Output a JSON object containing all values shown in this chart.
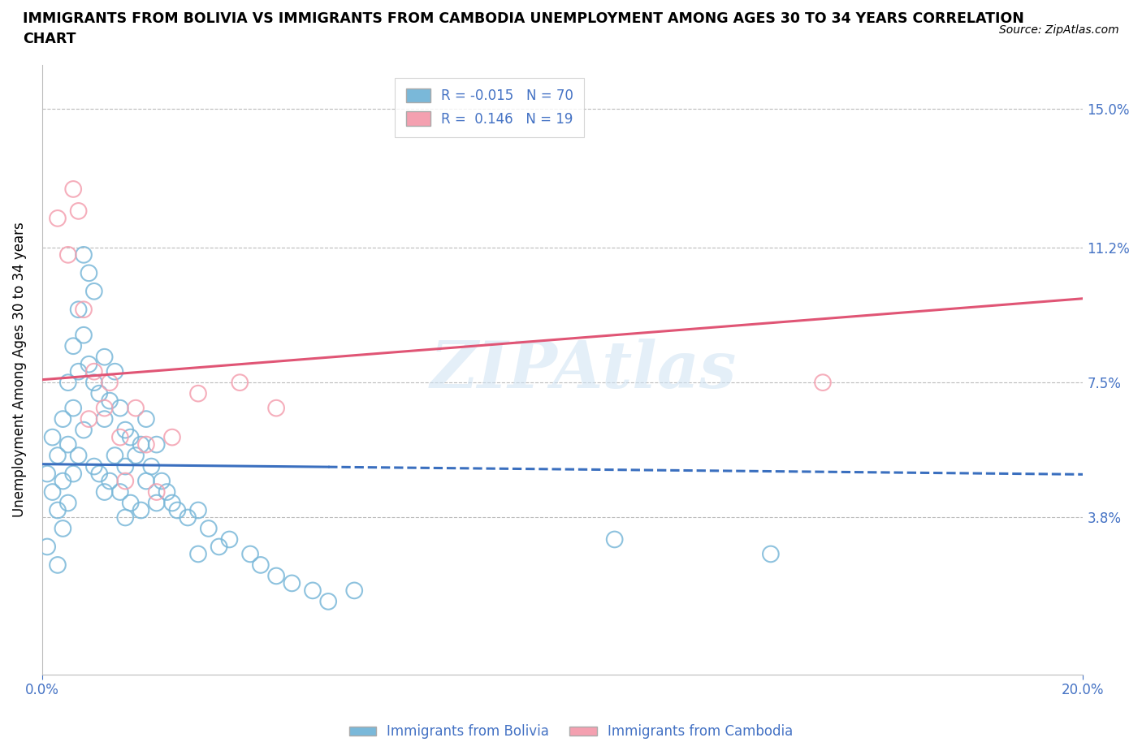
{
  "title_line1": "IMMIGRANTS FROM BOLIVIA VS IMMIGRANTS FROM CAMBODIA UNEMPLOYMENT AMONG AGES 30 TO 34 YEARS CORRELATION",
  "title_line2": "CHART",
  "source": "Source: ZipAtlas.com",
  "ylabel": "Unemployment Among Ages 30 to 34 years",
  "xlim": [
    0.0,
    0.2
  ],
  "ylim": [
    -0.005,
    0.162
  ],
  "ytick_values": [
    0.038,
    0.075,
    0.112,
    0.15
  ],
  "ytick_labels": [
    "3.8%",
    "7.5%",
    "11.2%",
    "15.0%"
  ],
  "bolivia_color": "#7ab8d9",
  "cambodia_color": "#f4a0b0",
  "bolivia_trend_color": "#3a6fbf",
  "cambodia_trend_color": "#e05575",
  "axis_color": "#4472c4",
  "legend_label_bolivia": "Immigrants from Bolivia",
  "legend_label_cambodia": "Immigrants from Cambodia",
  "watermark": "ZIPAtlas",
  "bolivia_R": -0.015,
  "bolivia_N": 70,
  "cambodia_R": 0.146,
  "cambodia_N": 19,
  "bolivia_scatter_x": [
    0.001,
    0.001,
    0.002,
    0.002,
    0.003,
    0.003,
    0.003,
    0.004,
    0.004,
    0.004,
    0.005,
    0.005,
    0.005,
    0.006,
    0.006,
    0.006,
    0.007,
    0.007,
    0.007,
    0.008,
    0.008,
    0.008,
    0.009,
    0.009,
    0.01,
    0.01,
    0.01,
    0.011,
    0.011,
    0.012,
    0.012,
    0.012,
    0.013,
    0.013,
    0.014,
    0.014,
    0.015,
    0.015,
    0.016,
    0.016,
    0.016,
    0.017,
    0.017,
    0.018,
    0.019,
    0.019,
    0.02,
    0.02,
    0.021,
    0.022,
    0.022,
    0.023,
    0.024,
    0.025,
    0.026,
    0.028,
    0.03,
    0.03,
    0.032,
    0.034,
    0.036,
    0.04,
    0.042,
    0.045,
    0.048,
    0.052,
    0.055,
    0.06,
    0.11,
    0.14
  ],
  "bolivia_scatter_y": [
    0.05,
    0.03,
    0.06,
    0.045,
    0.055,
    0.04,
    0.025,
    0.065,
    0.048,
    0.035,
    0.075,
    0.058,
    0.042,
    0.085,
    0.068,
    0.05,
    0.095,
    0.078,
    0.055,
    0.11,
    0.088,
    0.062,
    0.105,
    0.08,
    0.1,
    0.075,
    0.052,
    0.072,
    0.05,
    0.082,
    0.065,
    0.045,
    0.07,
    0.048,
    0.078,
    0.055,
    0.068,
    0.045,
    0.062,
    0.052,
    0.038,
    0.06,
    0.042,
    0.055,
    0.058,
    0.04,
    0.065,
    0.048,
    0.052,
    0.058,
    0.042,
    0.048,
    0.045,
    0.042,
    0.04,
    0.038,
    0.04,
    0.028,
    0.035,
    0.03,
    0.032,
    0.028,
    0.025,
    0.022,
    0.02,
    0.018,
    0.015,
    0.018,
    0.032,
    0.028
  ],
  "cambodia_scatter_x": [
    0.003,
    0.005,
    0.006,
    0.007,
    0.008,
    0.009,
    0.01,
    0.012,
    0.013,
    0.015,
    0.016,
    0.018,
    0.02,
    0.022,
    0.025,
    0.03,
    0.038,
    0.045,
    0.15
  ],
  "cambodia_scatter_y": [
    0.12,
    0.11,
    0.128,
    0.122,
    0.095,
    0.065,
    0.078,
    0.068,
    0.075,
    0.06,
    0.048,
    0.068,
    0.058,
    0.045,
    0.06,
    0.072,
    0.075,
    0.068,
    0.075
  ]
}
